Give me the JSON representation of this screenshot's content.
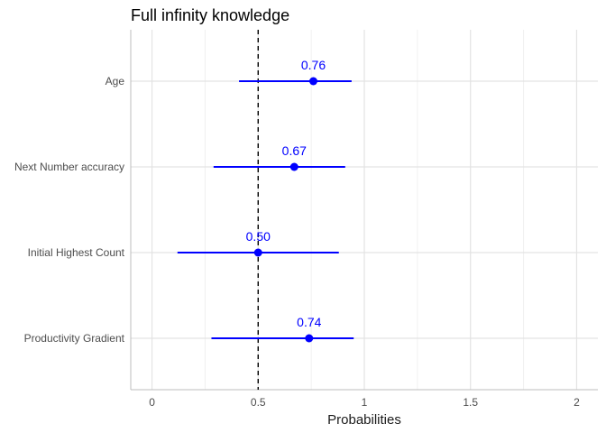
{
  "chart_data": {
    "type": "scatter",
    "title": "Full infinity knowledge",
    "xlabel": "Probabilities",
    "ylabel": "",
    "xlim": [
      -0.1,
      2.1
    ],
    "x_ticks": [
      0,
      0.5,
      1,
      1.5,
      2
    ],
    "x_tick_labels": [
      "0",
      "0.5",
      "1",
      "1.5",
      "2"
    ],
    "reference_line": 0.5,
    "grid": true,
    "legend": "none",
    "point_color": "#0000ff",
    "reference_color": "#000000",
    "points": [
      {
        "category": "Age",
        "value": 0.76,
        "lower": 0.41,
        "upper": 0.94,
        "label": "0.76"
      },
      {
        "category": "Next Number accuracy",
        "value": 0.67,
        "lower": 0.29,
        "upper": 0.91,
        "label": "0.67"
      },
      {
        "category": "Initial Highest Count",
        "value": 0.5,
        "lower": 0.12,
        "upper": 0.88,
        "label": "0.50"
      },
      {
        "category": "Productivity Gradient",
        "value": 0.74,
        "lower": 0.28,
        "upper": 0.95,
        "label": "0.74"
      }
    ]
  }
}
